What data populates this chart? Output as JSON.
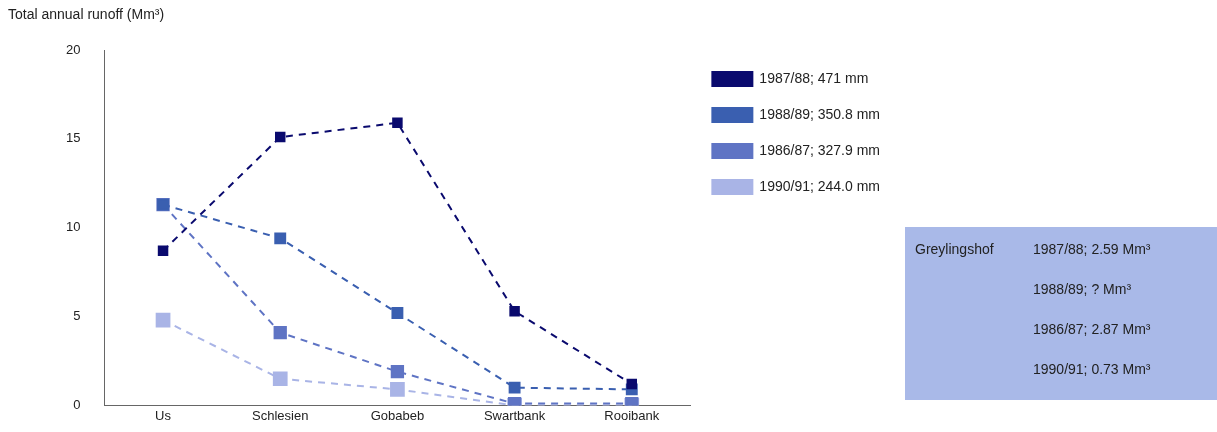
{
  "chart_data": {
    "type": "line",
    "ylabel": "Total annual runoff (Mm³)",
    "categories": [
      "Us",
      "Schlesien",
      "Gobabeb",
      "Swartbank",
      "Rooibank"
    ],
    "series": [
      {
        "name": "1987/88; 471 mm",
        "color": "#0a0a6e",
        "values": [
          8.7,
          15.1,
          15.9,
          5.3,
          1.2
        ]
      },
      {
        "name": "1988/89; 350.8 mm",
        "color": "#3a5fb0",
        "values": [
          11.3,
          9.4,
          5.2,
          1.0,
          0.9
        ]
      },
      {
        "name": "1986/87; 327.9 mm",
        "color": "#5f74c4",
        "values": [
          11.3,
          4.1,
          1.9,
          0.1,
          0.1
        ]
      },
      {
        "name": "1990/91; 244.0 mm",
        "color": "#a9b4e6",
        "values": [
          4.8,
          1.5,
          0.9,
          0,
          0
        ]
      }
    ],
    "ylim": [
      0,
      20
    ],
    "yticks": [
      0,
      5,
      10,
      15,
      20
    ],
    "grid": false,
    "legend": "top right",
    "marker": "square",
    "line_style": "dashed",
    "annotations": [
      "Greylingshof",
      "1987/88; 2.59 Mm³",
      "1988/89; ? Mm³",
      "1986/87; 2.87 Mm³",
      "1990/91; 0.73 Mm³"
    ]
  }
}
